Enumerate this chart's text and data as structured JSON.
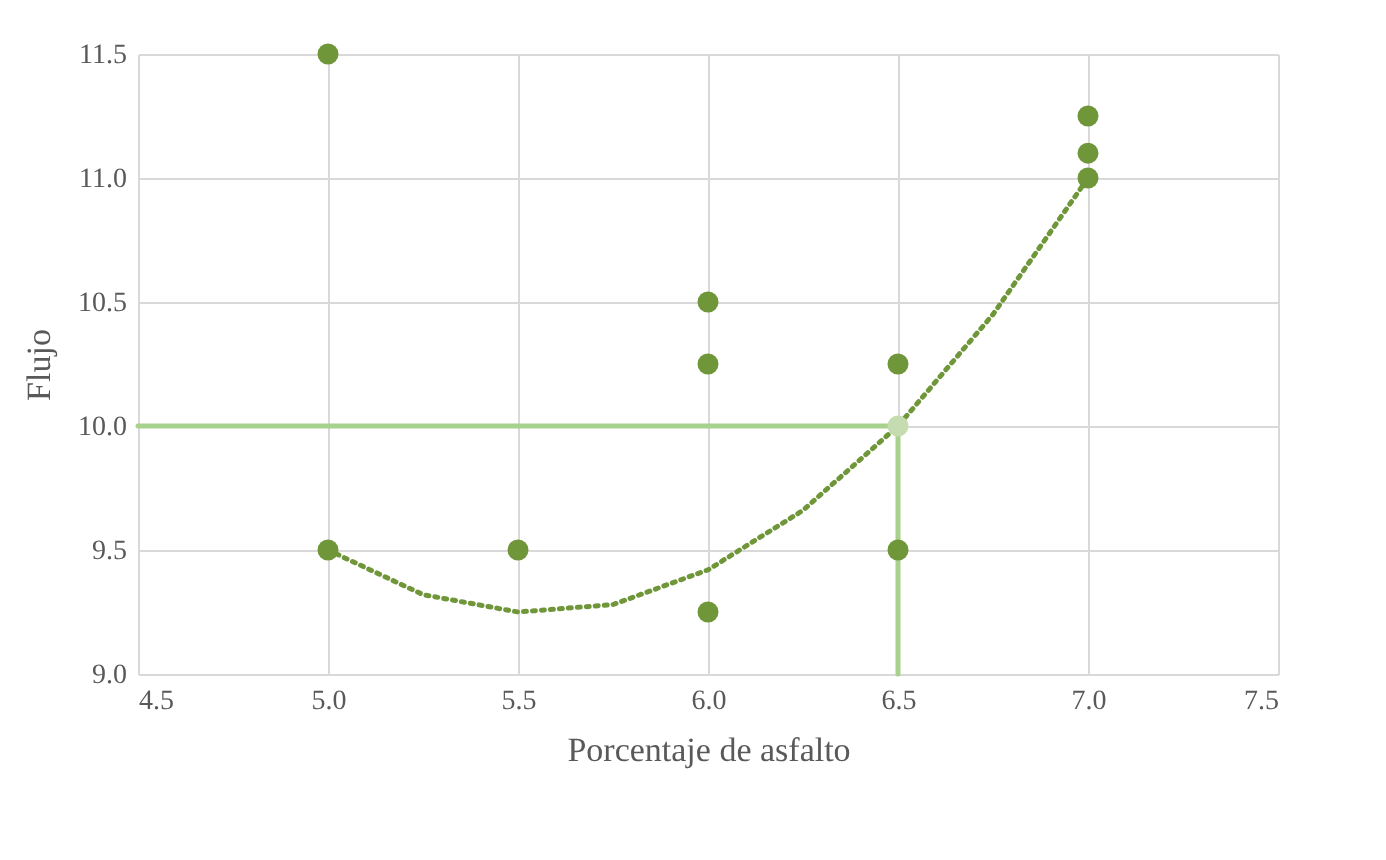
{
  "chart_data": {
    "type": "scatter",
    "xlabel": "Porcentaje de asfalto",
    "ylabel": "Flujo",
    "xlim": [
      4.5,
      7.5
    ],
    "xticks": [
      {
        "value": 4.5,
        "label": "4.5"
      },
      {
        "value": 5,
        "label": "5.0"
      },
      {
        "value": 5.5,
        "label": "5.5"
      },
      {
        "value": 6,
        "label": "6.0"
      },
      {
        "value": 6.5,
        "label": "6.5"
      },
      {
        "value": 7,
        "label": "7.0"
      },
      {
        "value": 7.5,
        "label": "7.5"
      }
    ],
    "ylim": [
      9,
      11.5
    ],
    "yticks": [
      {
        "value": 9,
        "label": "9.0"
      },
      {
        "value": 9.5,
        "label": "9.5"
      },
      {
        "value": 10,
        "label": "10.0"
      },
      {
        "value": 10.5,
        "label": "10.5"
      },
      {
        "value": 11,
        "label": "11.0"
      },
      {
        "value": 11.5,
        "label": "11.5"
      }
    ],
    "grid": true,
    "series": [
      {
        "type": "line",
        "color": "#a9d18e",
        "line_style": "solid",
        "marker": "none",
        "x": [
          4.5,
          6.5,
          6.5
        ],
        "values": [
          10,
          10,
          9
        ]
      },
      {
        "type": "line",
        "color": "#70963a",
        "line_style": "dotted",
        "marker": "none",
        "x": [
          5,
          5.25,
          5.5,
          5.75,
          6,
          6.25,
          6.5,
          6.75,
          7
        ],
        "values": [
          9.5,
          9.32,
          9.25,
          9.28,
          9.42,
          9.66,
          10,
          10.45,
          11
        ]
      },
      {
        "color": "#c5dcb0",
        "marker": "circle",
        "x": [
          6.5
        ],
        "values": [
          10
        ]
      },
      {
        "color": "#70963a",
        "marker": "circle",
        "x": [
          5,
          5,
          5.5,
          6,
          6,
          6,
          6.5,
          6.5,
          7,
          7,
          7
        ],
        "values": [
          11.5,
          9.5,
          9.5,
          10.5,
          10.25,
          9.25,
          10.25,
          9.5,
          11.25,
          11.1,
          11
        ]
      }
    ]
  }
}
